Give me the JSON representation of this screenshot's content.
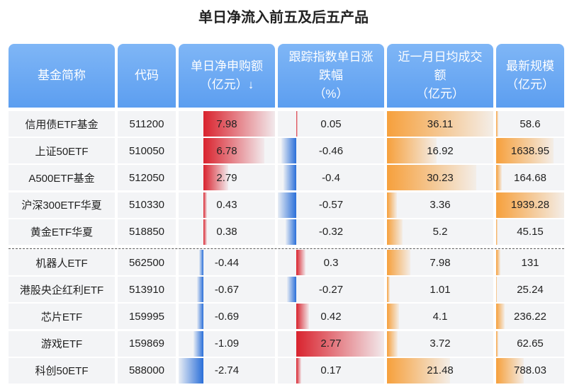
{
  "title": "单日净流入前五及后五产品",
  "table": {
    "header": [
      [
        "基金简称"
      ],
      [
        "代码"
      ],
      [
        "单日净申购额",
        "（亿元）↓"
      ],
      [
        "跟踪指数单日涨",
        "跌幅",
        "（%）"
      ],
      [
        "近一月日均成交",
        "额",
        "（亿元）"
      ],
      [
        "最新规模",
        "（亿元）"
      ]
    ],
    "rows": [
      [
        "信用债ETF基金",
        "511200",
        7.98,
        0.05,
        36.11,
        58.6
      ],
      [
        "上证50ETF",
        "510050",
        6.78,
        -0.46,
        16.92,
        1638.95
      ],
      [
        "A500ETF基金",
        "512050",
        2.79,
        -0.4,
        30.23,
        164.68
      ],
      [
        "沪深300ETF华夏",
        "510330",
        0.43,
        -0.57,
        3.36,
        1939.28
      ],
      [
        "黄金ETF华夏",
        "518850",
        0.38,
        -0.32,
        5.2,
        45.15
      ],
      [
        "机器人ETF",
        "562500",
        -0.44,
        0.3,
        7.98,
        131
      ],
      [
        "港股央企红利ETF",
        "513910",
        -0.67,
        -0.27,
        1.01,
        25.24
      ],
      [
        "芯片ETF",
        "159995",
        -0.69,
        0.42,
        4.1,
        236.22
      ],
      [
        "游戏ETF",
        "159869",
        -1.09,
        2.77,
        3.72,
        62.65
      ],
      [
        "科创50ETF",
        "588000",
        -2.74,
        0.17,
        21.48,
        788.03
      ]
    ]
  }
}
